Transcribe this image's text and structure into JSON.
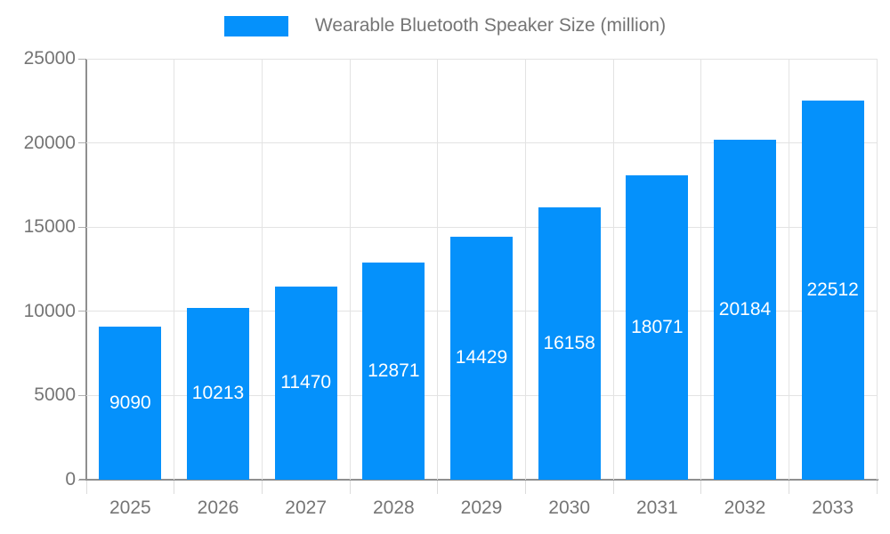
{
  "chart_data": {
    "type": "bar",
    "title": "Wearable Bluetooth Speaker Size (million)",
    "series": [
      {
        "name": "Wearable Bluetooth Speaker Size (million)",
        "values": [
          9090,
          10213,
          11470,
          12871,
          14429,
          16158,
          18071,
          20184,
          22512
        ]
      }
    ],
    "categories": [
      "2025",
      "2026",
      "2027",
      "2028",
      "2029",
      "2030",
      "2031",
      "2032",
      "2033"
    ],
    "xlabel": "",
    "ylabel": "",
    "ylim": [
      0,
      25000
    ],
    "y_ticks": [
      0,
      5000,
      10000,
      15000,
      20000,
      25000
    ],
    "grid": "on",
    "legend_position": "top-center",
    "bar_labels_shown": true,
    "colors": {
      "bar": "#0591fb",
      "bar_label_text": "#ffffff",
      "axis_text": "#757575",
      "axis_line": "#8f8f8f",
      "gridline": "#e3e3e3",
      "background": "#ffffff"
    }
  }
}
